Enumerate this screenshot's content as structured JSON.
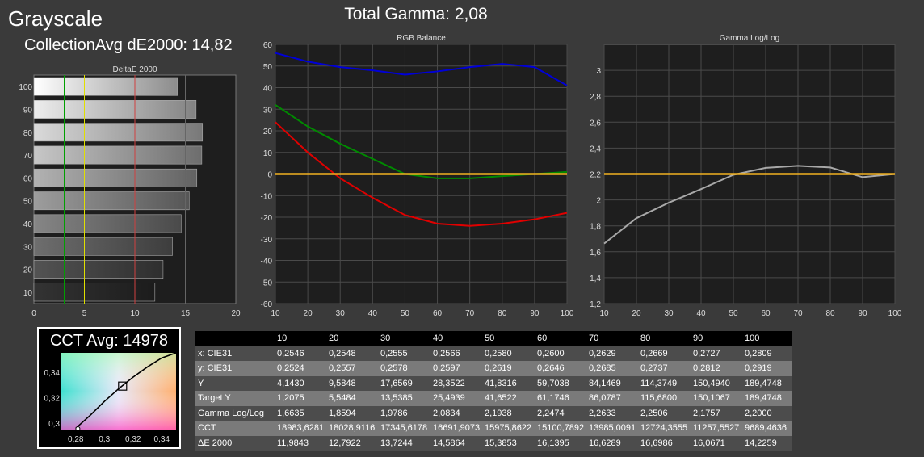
{
  "header": {
    "title": "Grayscale",
    "total_gamma": "Total Gamma: 2,08",
    "collection_avg": "CollectionAvg dE2000: 14,82"
  },
  "colors": {
    "background": "#3a3a3a",
    "plot_bg": "#1e1e1e",
    "grid": "#4a4a4a",
    "red": "#e00000",
    "green": "#008a00",
    "blue": "#0000d8",
    "target": "#f0b020",
    "gamma_measured": "#a8a8a8"
  },
  "chart_data": [
    {
      "type": "bar",
      "orientation": "horizontal",
      "title": "DeltaE 2000",
      "categories": [
        "100",
        "90",
        "80",
        "70",
        "60",
        "50",
        "40",
        "30",
        "20",
        "10"
      ],
      "values": [
        14.2259,
        16.0671,
        16.6986,
        16.6289,
        16.1395,
        15.3853,
        14.5864,
        13.7244,
        12.7922,
        11.9843
      ],
      "xlim": [
        0,
        20
      ],
      "x_ticks": [
        "0",
        "5",
        "10",
        "15",
        "20"
      ],
      "reference_lines": [
        {
          "x": 3,
          "color": "#00a000"
        },
        {
          "x": 5,
          "color": "#e0e000"
        },
        {
          "x": 10,
          "color": "#d04040"
        }
      ]
    },
    {
      "type": "line",
      "title": "RGB Balance",
      "x": [
        10,
        20,
        30,
        40,
        50,
        60,
        70,
        80,
        90,
        100
      ],
      "xlim": [
        10,
        100
      ],
      "ylim": [
        -60,
        60
      ],
      "x_ticks": [
        "10",
        "20",
        "30",
        "40",
        "50",
        "60",
        "70",
        "80",
        "90",
        "100"
      ],
      "y_ticks": [
        "60",
        "50",
        "40",
        "30",
        "20",
        "10",
        "0",
        "-10",
        "-20",
        "-30",
        "-40",
        "-50",
        "-60"
      ],
      "series": [
        {
          "color": "#e00000",
          "values": [
            24,
            10,
            -2,
            -11,
            -19,
            -23,
            -24,
            -23,
            -21,
            -18
          ]
        },
        {
          "color": "#008a00",
          "values": [
            32,
            22,
            14,
            7,
            0,
            -2,
            -2,
            -1,
            0,
            1
          ]
        },
        {
          "color": "#0000d8",
          "values": [
            56,
            52,
            49.5,
            48,
            46,
            47.5,
            49.5,
            51,
            49.5,
            41
          ]
        },
        {
          "color": "#f0b020",
          "values": [
            0,
            0,
            0,
            0,
            0,
            0,
            0,
            0,
            0,
            0
          ]
        }
      ]
    },
    {
      "type": "line",
      "title": "Gamma Log/Log",
      "x": [
        10,
        20,
        30,
        40,
        50,
        60,
        70,
        80,
        90,
        100
      ],
      "xlim": [
        10,
        100
      ],
      "ylim": [
        1.2,
        3.2
      ],
      "x_ticks": [
        "10",
        "20",
        "30",
        "40",
        "50",
        "60",
        "70",
        "80",
        "90",
        "100"
      ],
      "y_ticks": [
        "3",
        "2,8",
        "2,6",
        "2,4",
        "2,2",
        "2",
        "1,8",
        "1,6",
        "1,4",
        "1,2"
      ],
      "series": [
        {
          "color": "#a8a8a8",
          "values": [
            1.6635,
            1.8594,
            1.9786,
            2.0834,
            2.1938,
            2.2474,
            2.2633,
            2.2506,
            2.1757,
            2.2
          ]
        },
        {
          "color": "#f0b020",
          "values": [
            2.2,
            2.2,
            2.2,
            2.2,
            2.2,
            2.2,
            2.2,
            2.2,
            2.2,
            2.2
          ]
        }
      ]
    },
    {
      "type": "scatter",
      "title": "CCT Avg: 14978",
      "xlim": [
        0.27,
        0.35
      ],
      "ylim": [
        0.295,
        0.355
      ],
      "x_ticks": [
        "0,28",
        "0,3",
        "0,32",
        "0,34"
      ],
      "y_ticks": [
        "0,34",
        "0,32",
        "0,3"
      ],
      "target_point": {
        "x": 0.3127,
        "y": 0.329
      },
      "locus": {
        "x": [
          0.28,
          0.29,
          0.3,
          0.31,
          0.32,
          0.33,
          0.34,
          0.35
        ],
        "y": [
          0.296,
          0.306,
          0.317,
          0.327,
          0.336,
          0.344,
          0.351,
          0.357
        ]
      }
    }
  ],
  "table": {
    "columns": [
      "",
      "10",
      "20",
      "30",
      "40",
      "50",
      "60",
      "70",
      "80",
      "90",
      "100"
    ],
    "rows": [
      {
        "label": "x: CIE31",
        "values": [
          "0,2546",
          "0,2548",
          "0,2555",
          "0,2566",
          "0,2580",
          "0,2600",
          "0,2629",
          "0,2669",
          "0,2727",
          "0,2809"
        ]
      },
      {
        "label": "y: CIE31",
        "values": [
          "0,2524",
          "0,2557",
          "0,2578",
          "0,2597",
          "0,2619",
          "0,2646",
          "0,2685",
          "0,2737",
          "0,2812",
          "0,2919"
        ]
      },
      {
        "label": "Y",
        "values": [
          "4,1430",
          "9,5848",
          "17,6569",
          "28,3522",
          "41,8316",
          "59,7038",
          "84,1469",
          "114,3749",
          "150,4940",
          "189,4748"
        ]
      },
      {
        "label": "Target Y",
        "values": [
          "1,2075",
          "5,5484",
          "13,5385",
          "25,4939",
          "41,6522",
          "61,1746",
          "86,0787",
          "115,6800",
          "150,1067",
          "189,4748"
        ]
      },
      {
        "label": "Gamma Log/Log",
        "values": [
          "1,6635",
          "1,8594",
          "1,9786",
          "2,0834",
          "2,1938",
          "2,2474",
          "2,2633",
          "2,2506",
          "2,1757",
          "2,2000"
        ]
      },
      {
        "label": "CCT",
        "values": [
          "18983,6281",
          "18028,9116",
          "17345,6178",
          "16691,9073",
          "15975,8622",
          "15100,7892",
          "13985,0091",
          "12724,3555",
          "11257,5527",
          "9689,4636"
        ]
      },
      {
        "label": "ΔE 2000",
        "values": [
          "11,9843",
          "12,7922",
          "13,7244",
          "14,5864",
          "15,3853",
          "16,1395",
          "16,6289",
          "16,6986",
          "16,0671",
          "14,2259"
        ]
      }
    ]
  }
}
